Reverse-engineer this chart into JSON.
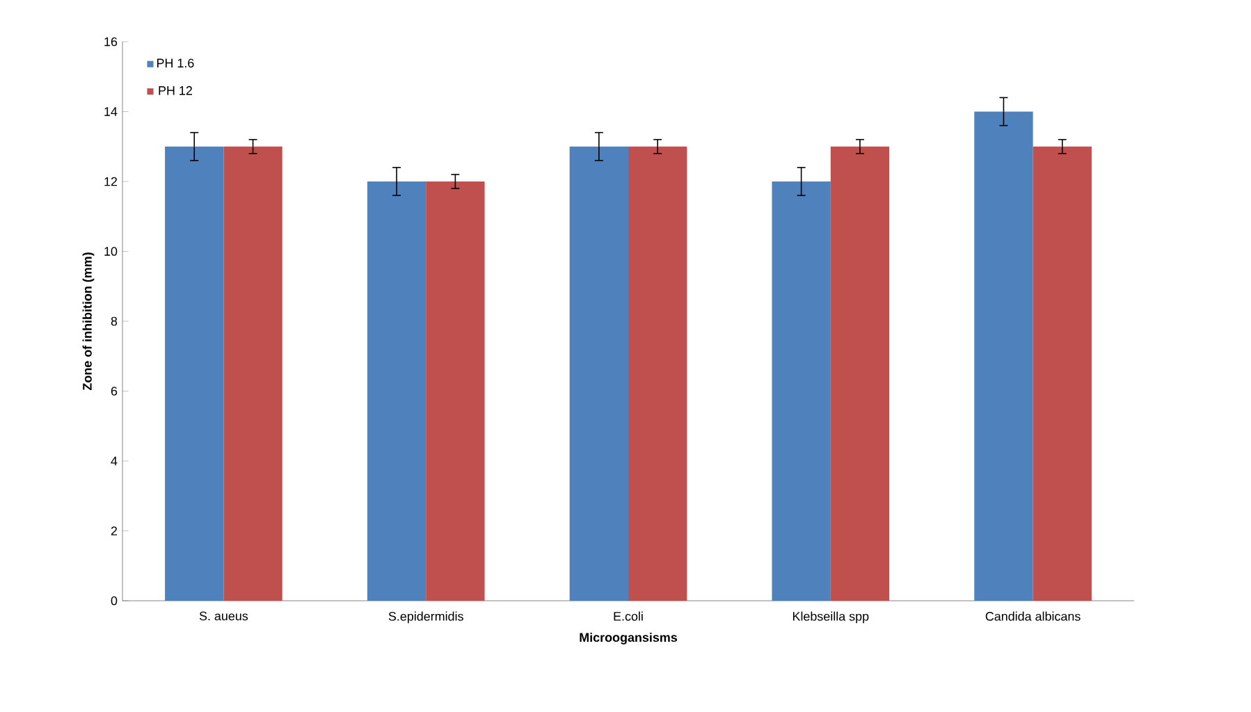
{
  "chart_data": {
    "type": "bar",
    "xlabel": "Microogansisms",
    "ylabel": "Zone of inhibition (mm)",
    "categories": [
      "S. aueus",
      "S.epidermidis",
      "E.coli",
      "Klebseilla spp",
      "Candida albicans"
    ],
    "series": [
      {
        "name": "PH 1.6",
        "color": "#4f81bd",
        "values": [
          13,
          12,
          13,
          12,
          14
        ],
        "errors": [
          0.4,
          0.4,
          0.4,
          0.4,
          0.4
        ]
      },
      {
        "name": "PH 12",
        "color": "#c0504d",
        "values": [
          13,
          12,
          13,
          13,
          13
        ],
        "errors": [
          0.2,
          0.2,
          0.2,
          0.2,
          0.2
        ]
      }
    ],
    "ylim": [
      0,
      16
    ],
    "yticks": [
      0,
      2,
      4,
      6,
      8,
      10,
      12,
      14,
      16
    ],
    "legend": "top left"
  }
}
